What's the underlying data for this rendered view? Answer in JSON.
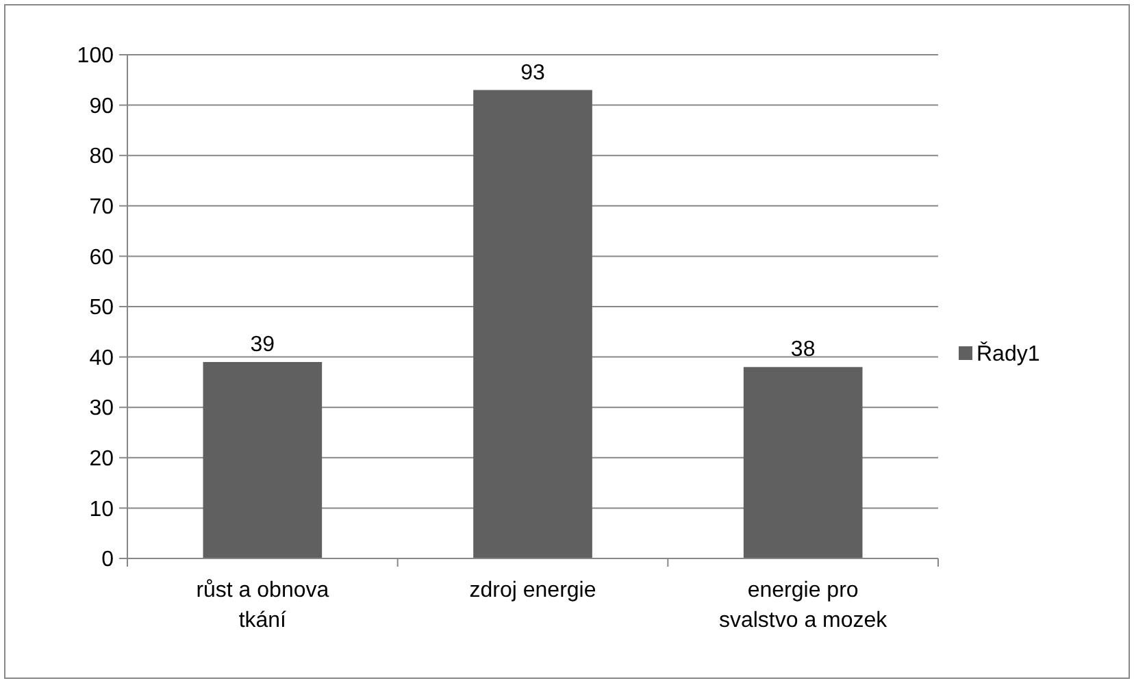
{
  "chart_data": {
    "type": "bar",
    "categories": [
      "růst a obnova tkání",
      "zdroj energie",
      "energie pro svalstvo a mozek"
    ],
    "series": [
      {
        "name": "Řady1",
        "color": "#606060",
        "values": [
          39,
          93,
          38
        ]
      }
    ],
    "ylim": [
      0,
      100
    ],
    "yticks": [
      0,
      10,
      20,
      30,
      40,
      50,
      60,
      70,
      80,
      90,
      100
    ],
    "grid": "y",
    "legend": "right",
    "data_labels": true
  }
}
